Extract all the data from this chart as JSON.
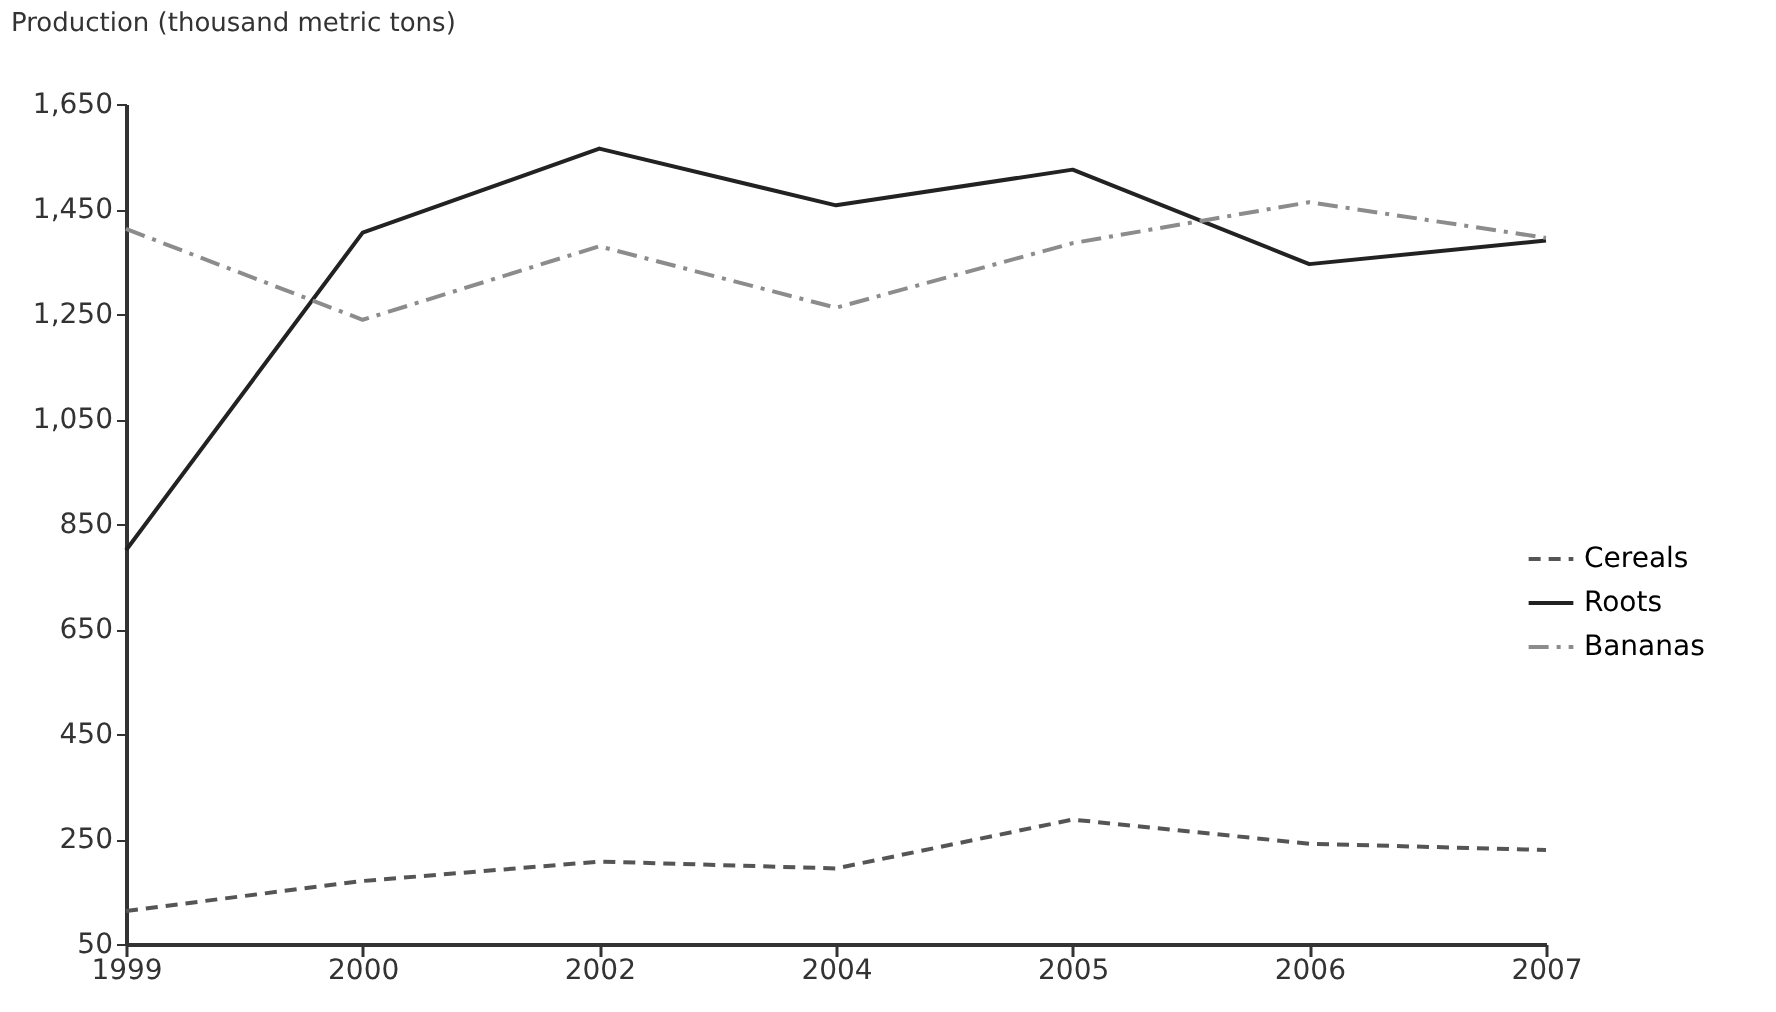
{
  "chart_data": {
    "type": "line",
    "ylabel": "Production (thousand metric tons)",
    "categories": [
      "1999",
      "2000",
      "2002",
      "2004",
      "2005",
      "2006",
      "2007"
    ],
    "series": [
      {
        "name": "Cereals",
        "color": "#555555",
        "line_style": "dashed",
        "values": [
          113,
          170,
          207,
          194,
          287,
          241,
          229
        ]
      },
      {
        "name": "Roots",
        "color": "#222222",
        "line_style": "solid",
        "values": [
          800,
          1405,
          1565,
          1457,
          1525,
          1345,
          1390
        ]
      },
      {
        "name": "Bananas",
        "color": "#8c8c8c",
        "line_style": "dashdot",
        "values": [
          1412,
          1239,
          1379,
          1262,
          1385,
          1463,
          1395
        ]
      }
    ],
    "ylim": [
      50,
      1650
    ],
    "yticks": [
      50,
      250,
      450,
      650,
      850,
      {
        "value": 1050,
        "label": "1,050"
      },
      {
        "value": 1250,
        "label": "1,250"
      },
      {
        "value": 1450,
        "label": "1,450"
      },
      {
        "value": 1650,
        "label": "1,650"
      }
    ],
    "grid": false,
    "legend": "right",
    "marker": "none"
  }
}
